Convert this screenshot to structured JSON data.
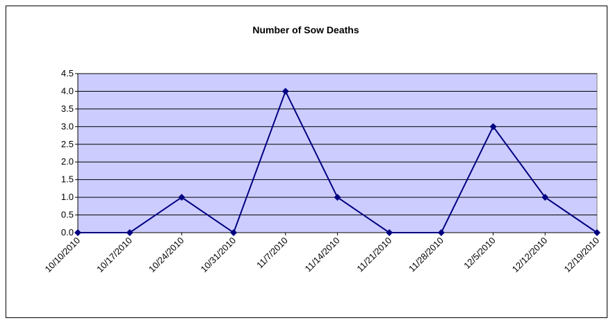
{
  "chart_data": {
    "type": "line",
    "title": "Number of Sow Deaths",
    "categories": [
      "10/10/2010",
      "10/17/2010",
      "10/24/2010",
      "10/31/2010",
      "11/7/2010",
      "11/14/2010",
      "11/21/2010",
      "11/28/2010",
      "12/5/2010",
      "12/12/2010",
      "12/19/2010"
    ],
    "series": [
      {
        "name": "Number of Sow Deaths",
        "color": "#000080",
        "values": [
          0,
          0,
          1,
          0,
          4,
          1,
          0,
          0,
          3,
          1,
          0
        ]
      }
    ],
    "ylim": [
      0,
      4.5
    ],
    "yticks": [
      {
        "value": 0,
        "label": "0.0"
      },
      {
        "value": 0.5,
        "label": "0.5"
      },
      {
        "value": 1,
        "label": "1.0"
      },
      {
        "value": 1.5,
        "label": "1.5"
      },
      {
        "value": 2,
        "label": "2.0"
      },
      {
        "value": 2.5,
        "label": "2.5"
      },
      {
        "value": 3,
        "label": "3.0"
      },
      {
        "value": 3.5,
        "label": "3.5"
      },
      {
        "value": 4,
        "label": "4.0"
      },
      {
        "value": 4.5,
        "label": "4.5"
      }
    ],
    "grid": true
  }
}
